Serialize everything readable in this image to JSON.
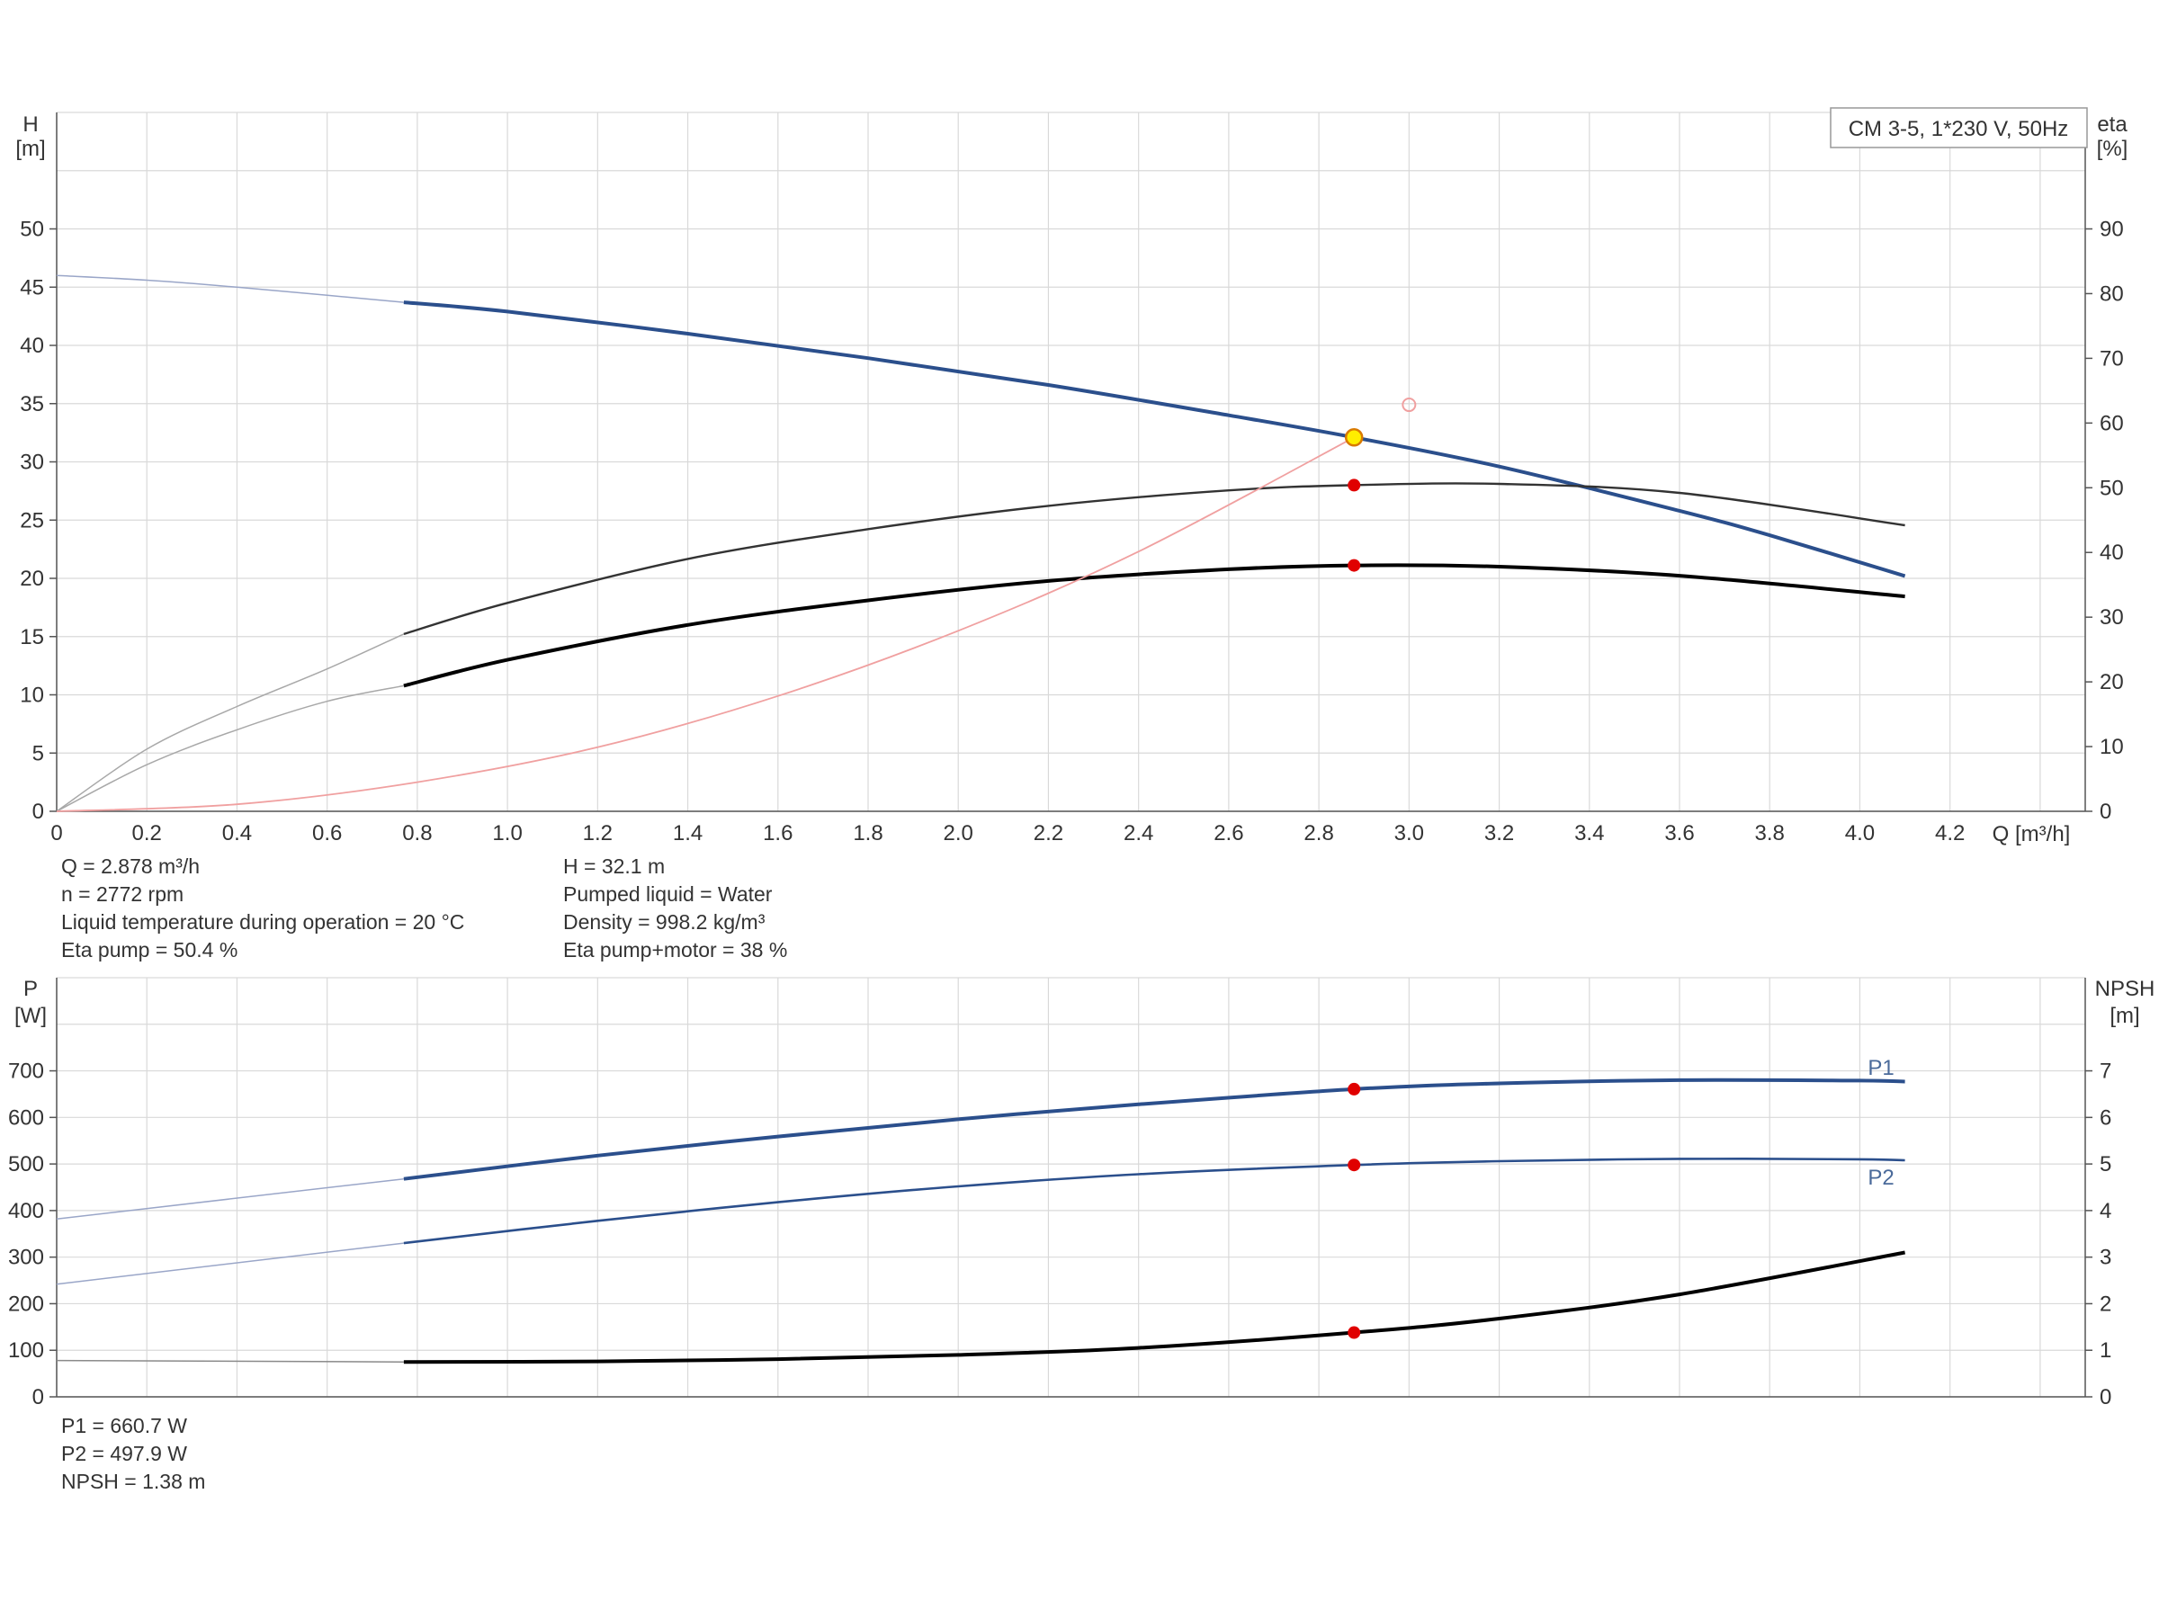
{
  "chart_data": [
    {
      "type": "line",
      "id": "head-efficiency",
      "legend_box": "CM 3-5, 1*230 V, 50Hz",
      "xlabel": "Q [m³/h]",
      "ylabel_left": [
        "H",
        "[m]"
      ],
      "ylabel_right": [
        "eta",
        "[%]"
      ],
      "xlim": [
        0,
        4.5
      ],
      "ylim_left": [
        0,
        60
      ],
      "ylim_right": [
        0,
        108
      ],
      "x_ticks": [
        "0",
        "0.2",
        "0.4",
        "0.6",
        "0.8",
        "1.0",
        "1.2",
        "1.4",
        "1.6",
        "1.8",
        "2.0",
        "2.2",
        "2.4",
        "2.6",
        "2.8",
        "3.0",
        "3.2",
        "3.4",
        "3.6",
        "3.8",
        "4.0",
        "4.2"
      ],
      "y_ticks_left": [
        0,
        5,
        10,
        15,
        20,
        25,
        30,
        35,
        40,
        45,
        50
      ],
      "y_ticks_right": [
        0,
        10,
        20,
        30,
        40,
        50,
        60,
        70,
        80,
        90
      ],
      "grid": true,
      "series": [
        {
          "key": "head",
          "axis": "left",
          "color": "#2b4f8c",
          "faint_x": [
            0,
            0.2,
            0.4,
            0.6,
            0.77
          ],
          "faint_y": [
            46.0,
            45.6,
            45.0,
            44.3,
            43.7
          ],
          "x": [
            0.77,
            1.0,
            1.4,
            1.8,
            2.2,
            2.6,
            2.878,
            3.2,
            3.6,
            3.8,
            4.1
          ],
          "y": [
            43.7,
            42.9,
            41.0,
            38.9,
            36.6,
            34.0,
            32.1,
            29.6,
            25.8,
            23.7,
            20.2
          ]
        },
        {
          "key": "eta-pump",
          "axis": "right",
          "color": "#333333",
          "faint_x": [
            0,
            0.2,
            0.4,
            0.6,
            0.77
          ],
          "faint_y": [
            0,
            9.6,
            16.2,
            22.0,
            27.4
          ],
          "x": [
            0.77,
            1.0,
            1.4,
            1.8,
            2.2,
            2.6,
            2.878,
            3.2,
            3.6,
            4.1
          ],
          "y": [
            27.4,
            32.2,
            39.0,
            43.6,
            47.2,
            49.6,
            50.4,
            50.6,
            49.2,
            44.2
          ]
        },
        {
          "key": "eta-pump-motor",
          "axis": "right",
          "color": "#000000",
          "faint_x": [
            0,
            0.2,
            0.4,
            0.6,
            0.77
          ],
          "faint_y": [
            0,
            7.2,
            12.6,
            17.0,
            19.4
          ],
          "x": [
            0.77,
            1.0,
            1.4,
            1.8,
            2.2,
            2.6,
            2.878,
            3.2,
            3.6,
            4.1
          ],
          "y": [
            19.4,
            23.4,
            28.8,
            32.6,
            35.6,
            37.4,
            38.0,
            37.8,
            36.4,
            33.2
          ]
        },
        {
          "key": "system-curve",
          "axis": "left",
          "color": "#f0a0a0",
          "x": [
            0,
            0.4,
            0.8,
            1.2,
            1.6,
            2.0,
            2.4,
            2.878
          ],
          "y": [
            0,
            0.6,
            2.5,
            5.5,
            9.9,
            15.5,
            22.3,
            32.1
          ]
        }
      ],
      "duty_point": {
        "q": 2.878,
        "h": 32.1
      },
      "requested_point": {
        "q": 3.0,
        "h": 34.9
      },
      "efficiency_markers": [
        50.4,
        38.0
      ]
    },
    {
      "type": "line",
      "id": "power-npsh",
      "ylabel_left": [
        "P",
        "[W]"
      ],
      "ylabel_right": [
        "NPSH",
        "[m]"
      ],
      "ylim_left": [
        0,
        900
      ],
      "ylim_right": [
        0,
        9
      ],
      "y_ticks_left": [
        0,
        100,
        200,
        300,
        400,
        500,
        600,
        700
      ],
      "y_ticks_right": [
        0,
        1,
        2,
        3,
        4,
        5,
        6,
        7
      ],
      "grid": true,
      "series": [
        {
          "name": "P1",
          "axis": "left",
          "color": "#2b4f8c",
          "faint_x": [
            0,
            0.77
          ],
          "faint_y": [
            382,
            468
          ],
          "x": [
            0.77,
            1.2,
            1.6,
            2.0,
            2.4,
            2.878,
            3.2,
            3.6,
            4.0,
            4.1
          ],
          "y": [
            468,
            518,
            559,
            596,
            628,
            660.7,
            673,
            680,
            679,
            677
          ]
        },
        {
          "name": "P2",
          "axis": "left",
          "color": "#2b4f8c",
          "faint_x": [
            0,
            0.77
          ],
          "faint_y": [
            242,
            330
          ],
          "x": [
            0.77,
            1.2,
            1.6,
            2.0,
            2.4,
            2.878,
            3.2,
            3.6,
            4.0,
            4.1
          ],
          "y": [
            330,
            378,
            418,
            452,
            478,
            497.9,
            506,
            511,
            510,
            508
          ]
        },
        {
          "key": "npsh",
          "axis": "right",
          "color": "#000000",
          "faint_x": [
            0,
            0.77
          ],
          "faint_y": [
            0.78,
            0.75
          ],
          "x": [
            0.77,
            1.2,
            1.6,
            2.0,
            2.4,
            2.878,
            3.2,
            3.6,
            4.1
          ],
          "y": [
            0.75,
            0.76,
            0.81,
            0.9,
            1.05,
            1.38,
            1.68,
            2.2,
            3.1
          ]
        }
      ],
      "duty_markers": [
        660.7,
        497.9,
        1.38
      ]
    }
  ],
  "info_main": {
    "col1": [
      "Q = 2.878 m³/h",
      "n = 2772 rpm",
      "Liquid temperature during operation = 20 °C",
      "Eta pump = 50.4 %"
    ],
    "col2": [
      "H = 32.1 m",
      "Pumped liquid = Water",
      "Density = 998.2 kg/m³",
      "Eta pump+motor = 38 %"
    ]
  },
  "info_power": [
    "P1 = 660.7 W",
    "P2 = 497.9 W",
    "NPSH = 1.38 m"
  ]
}
